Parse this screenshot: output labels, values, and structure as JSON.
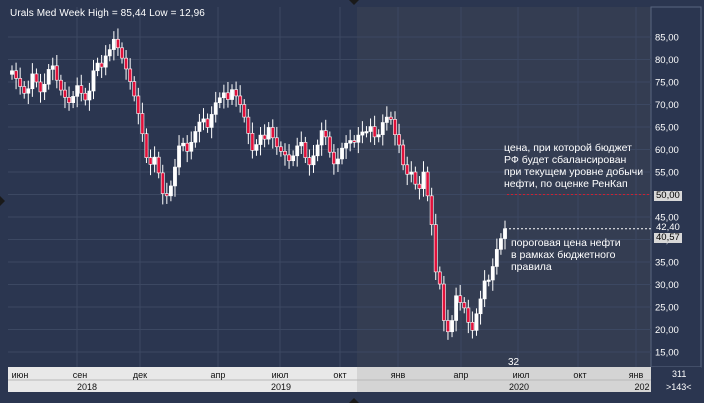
{
  "header": {
    "title": "Urals Med Week High = 85,44 Low = 12,96"
  },
  "annotations": {
    "budget_balance": "цена, при которой бюджет\nРФ будет сбалансирован\nпри текущем уровне добычи\nнефти, по оценке РенКап",
    "threshold": "пороговая цена нефти\nв рамках бюджетного\nправила",
    "bottom_value": "32"
  },
  "price_labels": {
    "budget_price": "50,00",
    "current_price": "42,40",
    "threshold_price": "40,57"
  },
  "corner": {
    "top": "311",
    "bottom": ">143<"
  },
  "colors": {
    "background": "#2b3650",
    "plot_future": "#343d52",
    "grid": "#3c4862",
    "up_candle": "#ffffff",
    "down_candle": "#e0103a",
    "budget_line": "#cc2030",
    "axis_bg": "#e8e8e8"
  },
  "chart_data": {
    "type": "candlestick",
    "title": "Urals Med Week High = 85,44 Low = 12,96",
    "y_ticks": [
      "15,00",
      "20,00",
      "25,00",
      "30,00",
      "35,00",
      "40,00",
      "45,00",
      "50,00",
      "55,00",
      "60,00",
      "65,00",
      "70,00",
      "75,00",
      "80,00",
      "85,00"
    ],
    "ylim": [
      10,
      90
    ],
    "x_month_labels": [
      "июн",
      "сен",
      "дек",
      "апр",
      "июл",
      "окт",
      "янв",
      "апр",
      "июл",
      "окт",
      "янв"
    ],
    "x_year_labels": [
      "2018",
      "2019",
      "2020",
      "202"
    ],
    "reference_lines": [
      {
        "name": "budget",
        "value": 50.0
      },
      {
        "name": "current",
        "value": 42.4
      }
    ],
    "closes": [
      77.5,
      75.8,
      74.0,
      72.5,
      73.5,
      76.8,
      75.0,
      72.8,
      74.5,
      77.8,
      78.6,
      75.4,
      73.2,
      71.6,
      70.4,
      71.8,
      74.2,
      72.5,
      71.0,
      73.0,
      77.5,
      79.2,
      78.3,
      80.8,
      82.2,
      84.5,
      82.6,
      80.3,
      77.9,
      75.1,
      71.9,
      68.0,
      63.5,
      58.2,
      56.7,
      58.3,
      54.8,
      50.2,
      49.7,
      51.9,
      56.1,
      60.8,
      61.4,
      59.6,
      61.6,
      64.0,
      66.1,
      66.8,
      64.9,
      67.8,
      70.4,
      71.5,
      72.6,
      71.1,
      73.3,
      71.9,
      70.0,
      67.2,
      63.6,
      59.8,
      61.1,
      63.2,
      62.3,
      64.9,
      62.6,
      60.6,
      59.6,
      58.8,
      57.5,
      58.6,
      60.8,
      61.6,
      58.2,
      56.6,
      58.6,
      61.0,
      64.2,
      62.8,
      59.4,
      56.8,
      57.9,
      60.3,
      61.4,
      62.0,
      61.6,
      63.2,
      63.9,
      64.0,
      65.1,
      62.8,
      63.3,
      66.0,
      67.2,
      66.7,
      63.3,
      61.0,
      56.6,
      54.5,
      55.0,
      52.3,
      51.3,
      55.0,
      49.7,
      43.3,
      32.8,
      30.1,
      22.0,
      19.5,
      22.0,
      27.5,
      26.0,
      24.8,
      21.6,
      19.8,
      23.5,
      26.8,
      30.8,
      31.0,
      34.0,
      37.8,
      40.2,
      42.4
    ]
  }
}
